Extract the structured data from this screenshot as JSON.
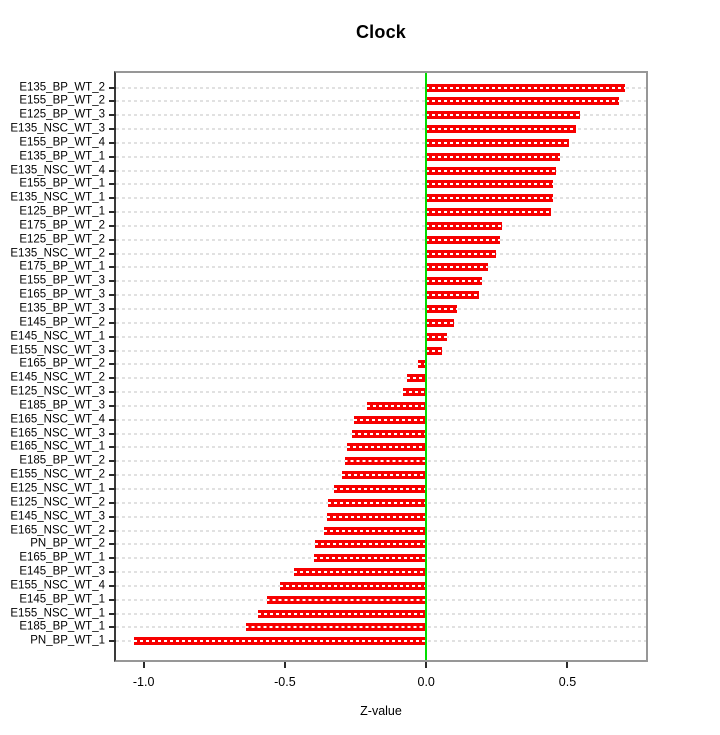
{
  "chart_data": {
    "type": "bar",
    "orientation": "horizontal",
    "title": "Clock",
    "xlabel": "Z-value",
    "categories": [
      "E135_BP_WT_2",
      "E155_BP_WT_2",
      "E125_BP_WT_3",
      "E135_NSC_WT_3",
      "E155_BP_WT_4",
      "E135_BP_WT_1",
      "E135_NSC_WT_4",
      "E155_BP_WT_1",
      "E135_NSC_WT_1",
      "E125_BP_WT_1",
      "E175_BP_WT_2",
      "E125_BP_WT_2",
      "E135_NSC_WT_2",
      "E175_BP_WT_1",
      "E155_BP_WT_3",
      "E165_BP_WT_3",
      "E135_BP_WT_3",
      "E145_BP_WT_2",
      "E145_NSC_WT_1",
      "E155_NSC_WT_3",
      "E165_BP_WT_2",
      "E145_NSC_WT_2",
      "E125_NSC_WT_3",
      "E185_BP_WT_3",
      "E165_NSC_WT_4",
      "E165_NSC_WT_3",
      "E165_NSC_WT_1",
      "E185_BP_WT_2",
      "E155_NSC_WT_2",
      "E125_NSC_WT_1",
      "E125_NSC_WT_2",
      "E145_NSC_WT_3",
      "E165_NSC_WT_2",
      "PN_BP_WT_2",
      "E165_BP_WT_1",
      "E145_BP_WT_3",
      "E155_NSC_WT_4",
      "E145_BP_WT_1",
      "E155_NSC_WT_1",
      "E185_BP_WT_1",
      "PN_BP_WT_1"
    ],
    "values": [
      0.71,
      0.69,
      0.55,
      0.535,
      0.51,
      0.48,
      0.465,
      0.455,
      0.452,
      0.448,
      0.27,
      0.265,
      0.25,
      0.22,
      0.2,
      0.19,
      0.11,
      0.1,
      0.075,
      0.058,
      -0.027,
      -0.068,
      -0.083,
      -0.21,
      -0.258,
      -0.265,
      -0.283,
      -0.287,
      -0.3,
      -0.328,
      -0.348,
      -0.352,
      -0.365,
      -0.395,
      -0.4,
      -0.47,
      -0.52,
      -0.565,
      -0.6,
      -0.64,
      -1.04
    ],
    "xticks": [
      -1.0,
      -0.5,
      0.0,
      0.5
    ],
    "xtick_labels": [
      "-1.0",
      "-0.5",
      "0.0",
      "0.5"
    ],
    "xlim": [
      -1.105,
      0.785
    ],
    "grid": true,
    "grid_style": "dashed",
    "legend": "none",
    "bar_color": "#f70000",
    "bar_dash_color": "#ffffff",
    "zero_line_color": "#00dd00",
    "grid_color": "#e1e1e1"
  }
}
